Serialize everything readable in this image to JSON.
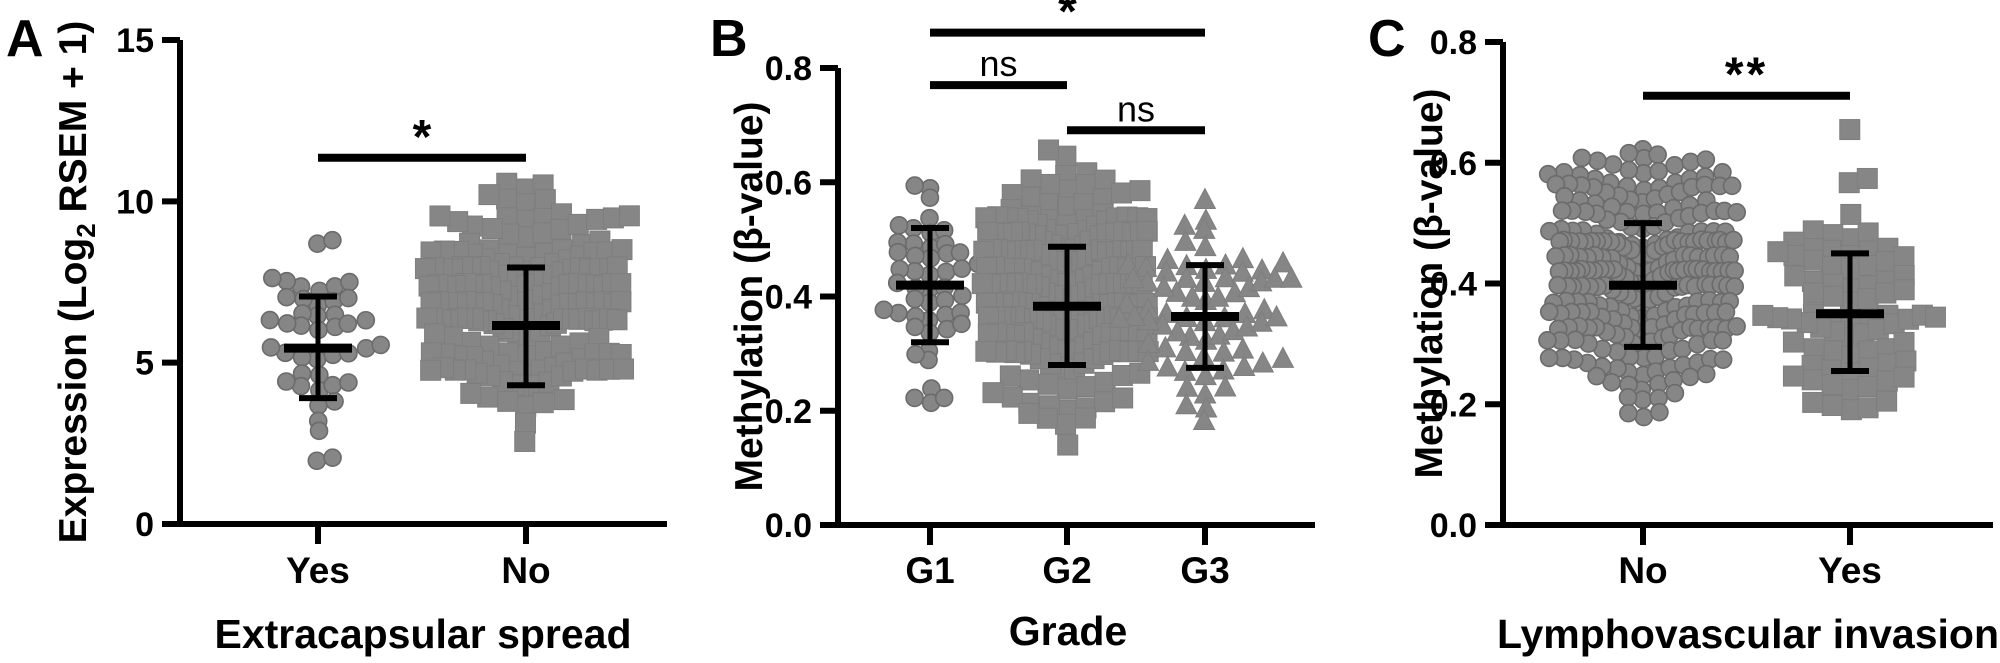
{
  "figure": {
    "background": "#ffffff",
    "marker_color": "#868686",
    "marker_edge_color": "#6b6b6b",
    "axis_color": "#000000",
    "significance_color": "#000000"
  },
  "chart_data": [
    {
      "type": "scatter",
      "panel_label": "A",
      "xlabel": "Extracapsular spread",
      "ylabel": "Expression (Log2 RSEM + 1)",
      "ylabel_segments": [
        {
          "text": "Expression (Log"
        },
        {
          "text": "2",
          "sub": true
        },
        {
          "text": " RSEM + 1)"
        }
      ],
      "ylim": [
        0,
        15
      ],
      "yticks": [
        {
          "v": 0,
          "label": "0"
        },
        {
          "v": 5,
          "label": "5"
        },
        {
          "v": 10,
          "label": "10"
        },
        {
          "v": 15,
          "label": "15"
        }
      ],
      "categories": [
        "Yes",
        "No"
      ],
      "grid": false,
      "legend": "none",
      "groups": [
        {
          "label": "Yes",
          "marker": "circle",
          "n": 44,
          "mean": 5.45,
          "err_low": 3.9,
          "err_high": 7.05,
          "min": 1.9,
          "max": 8.7
        },
        {
          "label": "No",
          "marker": "square",
          "n": 190,
          "mean": 6.15,
          "err_low": 4.3,
          "err_high": 7.95,
          "min": 2.6,
          "max": 10.5
        }
      ],
      "significance": [
        {
          "between": [
            0,
            1
          ],
          "label": "*",
          "at": 11.35
        }
      ]
    },
    {
      "type": "scatter",
      "panel_label": "B",
      "xlabel": "Grade",
      "ylabel": "Methylation (β-value)",
      "ylabel_segments": [
        {
          "text": "Methylation (β-value)"
        }
      ],
      "ylim": [
        0,
        0.8
      ],
      "yticks": [
        {
          "v": 0,
          "label": "0.0"
        },
        {
          "v": 0.2,
          "label": "0.2"
        },
        {
          "v": 0.4,
          "label": "0.4"
        },
        {
          "v": 0.6,
          "label": "0.6"
        },
        {
          "v": 0.8,
          "label": "0.8"
        }
      ],
      "categories": [
        "G1",
        "G2",
        "G3"
      ],
      "grid": false,
      "legend": "none",
      "groups": [
        {
          "label": "G1",
          "marker": "circle",
          "n": 48,
          "mean": 0.42,
          "err_low": 0.32,
          "err_high": 0.52,
          "min": 0.21,
          "max": 0.59
        },
        {
          "label": "G2",
          "marker": "square",
          "n": 235,
          "mean": 0.383,
          "err_low": 0.28,
          "err_high": 0.487,
          "min": 0.14,
          "max": 0.65
        },
        {
          "label": "G3",
          "marker": "triangle",
          "n": 72,
          "mean": 0.365,
          "err_low": 0.275,
          "err_high": 0.455,
          "min": 0.18,
          "max": 0.57
        }
      ],
      "significance": [
        {
          "between": [
            0,
            2
          ],
          "label": "*",
          "at": 0.862
        },
        {
          "between": [
            0,
            1
          ],
          "label": "ns",
          "at": 0.77
        },
        {
          "between": [
            1,
            2
          ],
          "label": "ns",
          "at": 0.691
        }
      ]
    },
    {
      "type": "scatter",
      "panel_label": "C",
      "xlabel": "Lymphovascular invasion",
      "ylabel": "Methylation (β-value)",
      "ylabel_segments": [
        {
          "text": "Methylation (β-value)"
        }
      ],
      "ylim": [
        0,
        0.8
      ],
      "yticks": [
        {
          "v": 0,
          "label": "0.0"
        },
        {
          "v": 0.2,
          "label": "0.2"
        },
        {
          "v": 0.4,
          "label": "0.4"
        },
        {
          "v": 0.6,
          "label": "0.6"
        },
        {
          "v": 0.8,
          "label": "0.8"
        }
      ],
      "categories": [
        "No",
        "Yes"
      ],
      "grid": false,
      "legend": "none",
      "groups": [
        {
          "label": "No",
          "marker": "circle",
          "n": 285,
          "mean": 0.397,
          "err_low": 0.295,
          "err_high": 0.5,
          "min": 0.17,
          "max": 0.62
        },
        {
          "label": "Yes",
          "marker": "square",
          "n": 78,
          "mean": 0.35,
          "err_low": 0.255,
          "err_high": 0.45,
          "min": 0.18,
          "max": 0.655
        }
      ],
      "significance": [
        {
          "between": [
            0,
            1
          ],
          "label": "**",
          "at": 0.711
        }
      ]
    }
  ]
}
